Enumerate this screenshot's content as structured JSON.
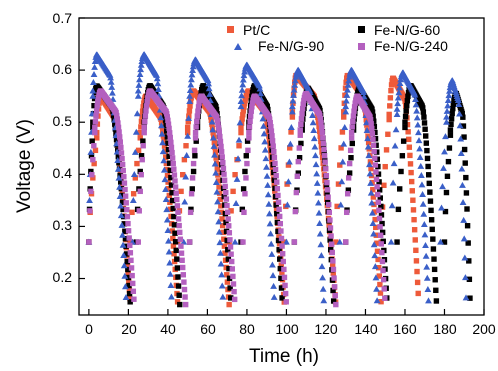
{
  "chart_data": {
    "type": "scatter",
    "title": "",
    "xlabel": "Time (h)",
    "ylabel": "Voltage (V)",
    "xlim": [
      -5,
      200
    ],
    "ylim": [
      0.13,
      0.7
    ],
    "xticks": [
      "0",
      "20",
      "40",
      "60",
      "80",
      "100",
      "120",
      "140",
      "160",
      "180",
      "200"
    ],
    "yticks": [
      "0.2",
      "0.3",
      "0.4",
      "0.5",
      "0.6",
      "0.7"
    ],
    "legend_position": "top-right",
    "legend": [
      "Pt/C",
      "Fe-N/G-60",
      "Fe-N/G-90",
      "Fe-N/G-240"
    ],
    "series": [
      {
        "name": "Pt/C",
        "color": "#ee5a3a",
        "marker": "square",
        "cycles": [
          {
            "start": 0,
            "recover": 4,
            "peak_t": 6,
            "peak_v": 0.55,
            "end": 21
          },
          {
            "start": 21,
            "recover": 26,
            "peak_t": 29,
            "peak_v": 0.55,
            "end": 45
          },
          {
            "start": 45,
            "recover": 50,
            "peak_t": 53,
            "peak_v": 0.56,
            "end": 71
          },
          {
            "start": 71,
            "recover": 77,
            "peak_t": 81,
            "peak_v": 0.56,
            "end": 99
          },
          {
            "start": 99,
            "recover": 103,
            "peak_t": 105,
            "peak_v": 0.59,
            "end": 125
          },
          {
            "start": 125,
            "recover": 129,
            "peak_t": 131,
            "peak_v": 0.59,
            "end": 148
          },
          {
            "start": 148,
            "recover": 152,
            "peak_t": 154,
            "peak_v": 0.585,
            "end": 167
          }
        ]
      },
      {
        "name": "Fe-N/G-60",
        "color": "#000000",
        "marker": "square",
        "cycles": [
          {
            "start": 0,
            "recover": 2,
            "peak_t": 4,
            "peak_v": 0.57,
            "end": 21
          },
          {
            "start": 24,
            "recover": 28,
            "peak_t": 31,
            "peak_v": 0.57,
            "end": 46
          },
          {
            "start": 51,
            "recover": 55,
            "peak_t": 58,
            "peak_v": 0.57,
            "end": 72
          },
          {
            "start": 77,
            "recover": 81,
            "peak_t": 84,
            "peak_v": 0.57,
            "end": 98
          },
          {
            "start": 104,
            "recover": 108,
            "peak_t": 111,
            "peak_v": 0.565,
            "end": 124
          },
          {
            "start": 130,
            "recover": 134,
            "peak_t": 137,
            "peak_v": 0.565,
            "end": 151
          },
          {
            "start": 156,
            "recover": 160,
            "peak_t": 163,
            "peak_v": 0.57,
            "end": 176
          },
          {
            "start": 180,
            "recover": 183,
            "peak_t": 186,
            "peak_v": 0.555,
            "end": 193
          }
        ]
      },
      {
        "name": "Fe-N/G-90",
        "color": "#3a5fc8",
        "marker": "triangle",
        "cycles": [
          {
            "start": 0,
            "recover": 2,
            "peak_t": 4,
            "peak_v": 0.63,
            "end": 19
          },
          {
            "start": 22,
            "recover": 25,
            "peak_t": 28,
            "peak_v": 0.63,
            "end": 42
          },
          {
            "start": 48,
            "recover": 51,
            "peak_t": 54,
            "peak_v": 0.62,
            "end": 68
          },
          {
            "start": 74,
            "recover": 77,
            "peak_t": 80,
            "peak_v": 0.61,
            "end": 94
          },
          {
            "start": 100,
            "recover": 103,
            "peak_t": 106,
            "peak_v": 0.6,
            "end": 119
          },
          {
            "start": 127,
            "recover": 130,
            "peak_t": 133,
            "peak_v": 0.6,
            "end": 146
          },
          {
            "start": 153,
            "recover": 156,
            "peak_t": 159,
            "peak_v": 0.595,
            "end": 172
          },
          {
            "start": 178,
            "recover": 181,
            "peak_t": 184,
            "peak_v": 0.58,
            "end": 191
          }
        ]
      },
      {
        "name": "Fe-N/G-240",
        "color": "#b460bf",
        "marker": "square",
        "cycles": [
          {
            "start": 0,
            "recover": 3,
            "peak_t": 6,
            "peak_v": 0.56,
            "end": 23
          },
          {
            "start": 25,
            "recover": 28,
            "peak_t": 31,
            "peak_v": 0.56,
            "end": 49
          },
          {
            "start": 51,
            "recover": 54,
            "peak_t": 57,
            "peak_v": 0.55,
            "end": 74
          },
          {
            "start": 78,
            "recover": 81,
            "peak_t": 84,
            "peak_v": 0.55,
            "end": 100
          },
          {
            "start": 104,
            "recover": 107,
            "peak_t": 110,
            "peak_v": 0.555,
            "end": 125
          },
          {
            "start": 130,
            "recover": 133,
            "peak_t": 136,
            "peak_v": 0.55,
            "end": 150
          }
        ]
      }
    ]
  }
}
